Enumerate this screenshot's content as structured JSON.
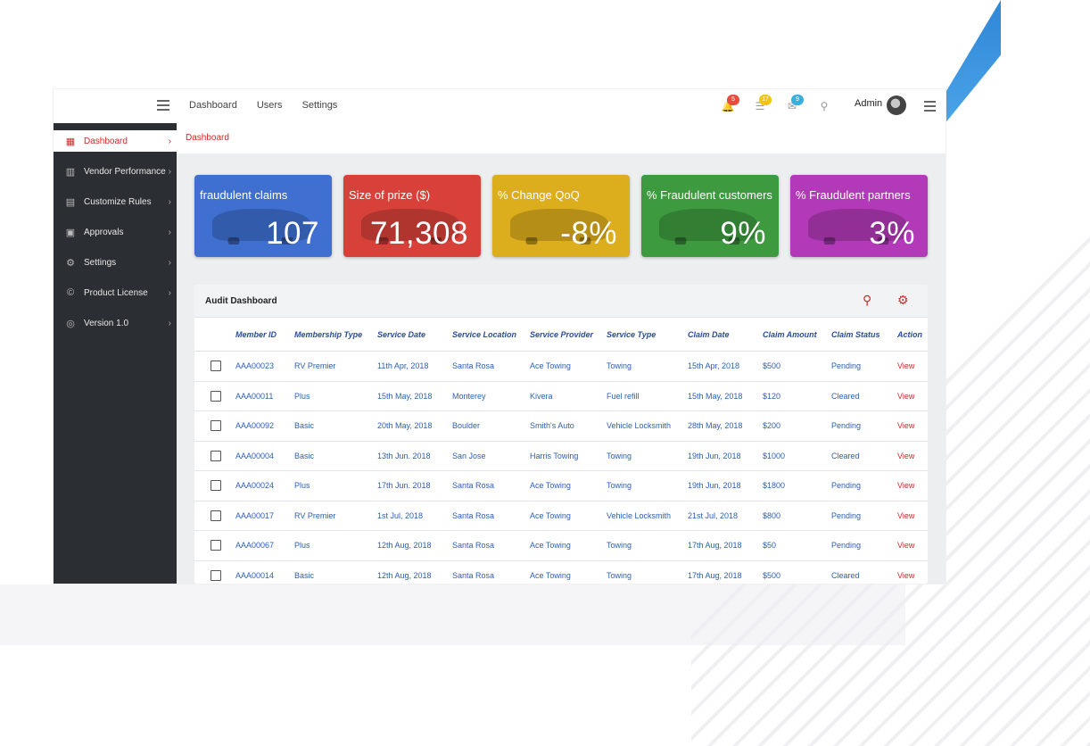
{
  "topbar": {
    "nav": [
      "Dashboard",
      "Users",
      "Settings"
    ],
    "icons": [
      {
        "name": "bell-icon",
        "glyph": "🔔",
        "badge": "5",
        "badge_color": "#e74c3c"
      },
      {
        "name": "tasks-icon",
        "glyph": "☰",
        "badge": "17",
        "badge_color": "#f1c40f"
      },
      {
        "name": "mail-icon",
        "glyph": "✉",
        "badge": "9",
        "badge_color": "#3bafda"
      },
      {
        "name": "location-pin-icon",
        "glyph": "⚲",
        "badge": "",
        "badge_color": ""
      }
    ],
    "user": "Admin"
  },
  "sidebar": {
    "items": [
      {
        "label": "Dashboard",
        "icon": "dashboard-icon",
        "glyph": "▦"
      },
      {
        "label": "Vendor Performance",
        "icon": "chart-icon",
        "glyph": "▥"
      },
      {
        "label": "Customize Rules",
        "icon": "document-icon",
        "glyph": "▤"
      },
      {
        "label": "Approvals",
        "icon": "approvals-icon",
        "glyph": "▣"
      },
      {
        "label": "Settings",
        "icon": "gear-icon",
        "glyph": "⚙"
      },
      {
        "label": "Product License",
        "icon": "copyright-icon",
        "glyph": "©"
      },
      {
        "label": "Version 1.0",
        "icon": "version-icon",
        "glyph": "◎"
      }
    ]
  },
  "breadcrumb": "Dashboard",
  "cards": [
    {
      "title": "fraudulent claims",
      "value": "107",
      "color": "#3f6fd1"
    },
    {
      "title": "Size of prize ($)",
      "value": "71,308",
      "color": "#d8413a"
    },
    {
      "title": "% Change QoQ",
      "value": "-8%",
      "color": "#dcae1d"
    },
    {
      "title": "% Fraudulent customers",
      "value": "9%",
      "color": "#3d9a3f"
    },
    {
      "title": "% Fraudulent partners",
      "value": "3%",
      "color": "#b23ab8"
    }
  ],
  "audit": {
    "title": "Audit Dashboard",
    "columns": [
      "Member ID",
      "Membership Type",
      "Service Date",
      "Service Location",
      "Service Provider",
      "Service Type",
      "Claim Date",
      "Claim Amount",
      "Claim Status",
      "Action"
    ],
    "rows": [
      [
        "AAA00023",
        "RV Premier",
        "11th Apr, 2018",
        "Santa Rosa",
        "Ace Towing",
        "Towing",
        "15th Apr, 2018",
        "$500",
        "Pending",
        "View"
      ],
      [
        "AAA00011",
        "Plus",
        "15th May, 2018",
        "Monterey",
        "Kivera",
        "Fuel refill",
        "15th May, 2018",
        "$120",
        "Cleared",
        "View"
      ],
      [
        "AAA00092",
        "Basic",
        "20th May, 2018",
        "Boulder",
        "Smith's Auto",
        "Vehicle Locksmith",
        "28th May, 2018",
        "$200",
        "Pending",
        "View"
      ],
      [
        "AAA00004",
        "Basic",
        "13th Jun. 2018",
        "San Jose",
        "Harris Towing",
        "Towing",
        "19th Jun, 2018",
        "$1000",
        "Cleared",
        "View"
      ],
      [
        "AAA00024",
        "Plus",
        "17th Jun. 2018",
        "Santa Rosa",
        "Ace Towing",
        "Towing",
        "19th Jun, 2018",
        "$1800",
        "Pending",
        "View"
      ],
      [
        "AAA00017",
        "RV Premier",
        "1st Jul, 2018",
        "Santa Rosa",
        "Ace Towing",
        "Vehicle Locksmith",
        "21st Jul, 2018",
        "$800",
        "Pending",
        "View"
      ],
      [
        "AAA00067",
        "Plus",
        "12th Aug, 2018",
        "Santa Rosa",
        "Ace Towing",
        "Towing",
        "17th Aug, 2018",
        "$50",
        "Pending",
        "View"
      ],
      [
        "AAA00014",
        "Basic",
        "12th Aug, 2018",
        "Santa Rosa",
        "Ace Towing",
        "Towing",
        "17th Aug, 2018",
        "$500",
        "Cleared",
        "View"
      ]
    ]
  }
}
